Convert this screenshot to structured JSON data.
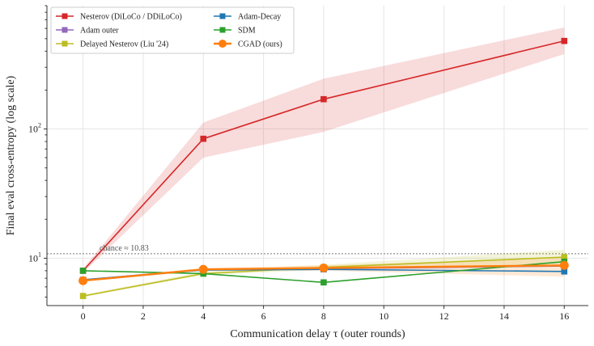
{
  "chart_data": {
    "type": "line",
    "title": "",
    "xlabel": "Communication delay τ  (outer rounds)",
    "ylabel": "Final eval cross-entropy (log scale)",
    "x": [
      0,
      4,
      8,
      16
    ],
    "xlim": [
      -1.2,
      16.8
    ],
    "ylim": [
      4.3,
      900
    ],
    "yscale": "log",
    "xticks": [
      0,
      2,
      4,
      6,
      8,
      10,
      12,
      14,
      16
    ],
    "yticks": [
      {
        "value": 10,
        "base": "10",
        "exp": "1"
      },
      {
        "value": 100,
        "base": "10",
        "exp": "2"
      }
    ],
    "grid": true,
    "legend_position": "top-left",
    "reference_line": {
      "value": 10.83,
      "label": "chance ≈ 10.83"
    },
    "series": [
      {
        "name": "Nesterov (DiLoCo / DDiLoCo)",
        "color": "#d62728",
        "marker": "square",
        "values": [
          8.0,
          84,
          170,
          480
        ],
        "band_low": [
          7.7,
          60,
          95,
          380
        ],
        "band_high": [
          8.3,
          112,
          245,
          610
        ]
      },
      {
        "name": "Adam outer",
        "color": "#9467bd",
        "marker": "square",
        "values": [
          6.8,
          8.2,
          8.3,
          8.7
        ]
      },
      {
        "name": "Delayed Nesterov (Liu '24)",
        "color": "#bcbd22",
        "marker": "square",
        "values": [
          5.1,
          7.6,
          8.5,
          10.2
        ],
        "band_low": [
          5.0,
          7.4,
          8.1,
          9.0
        ],
        "band_high": [
          5.2,
          7.9,
          8.9,
          11.6
        ]
      },
      {
        "name": "Adam-Decay",
        "color": "#1f77b4",
        "marker": "square",
        "values": [
          6.8,
          8.1,
          8.2,
          7.9
        ]
      },
      {
        "name": "SDM",
        "color": "#2ca02c",
        "marker": "square",
        "values": [
          8.0,
          7.6,
          6.5,
          9.4
        ]
      },
      {
        "name": "CGAD (ours)",
        "color": "#ff7f0e",
        "marker": "circle",
        "values": [
          6.7,
          8.2,
          8.4,
          8.8
        ],
        "band_low": [
          6.6,
          8.0,
          8.0,
          7.2
        ],
        "band_high": [
          6.8,
          8.4,
          8.8,
          10.0
        ]
      }
    ]
  }
}
